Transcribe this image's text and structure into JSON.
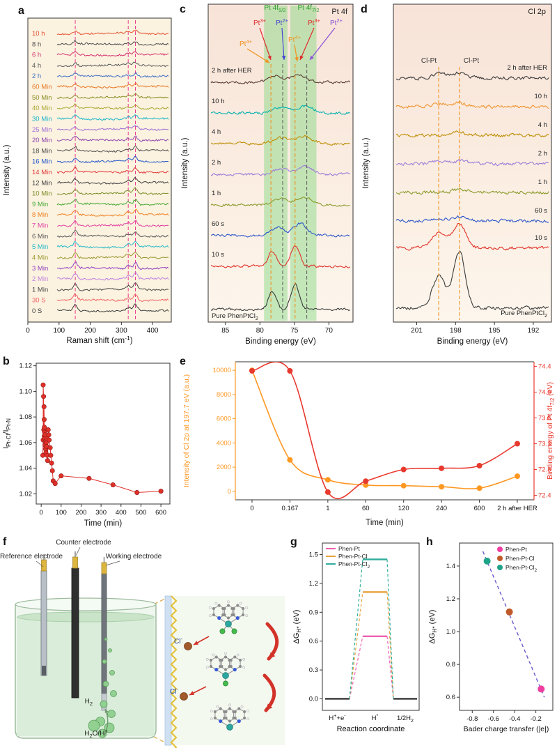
{
  "chart_data": {
    "a": {
      "letter": "a",
      "type": "line-stack",
      "xlabel": "Raman shift (cm^{-1})",
      "ylabel": "Intensity (a.u.)",
      "x_ticks": [
        0,
        100,
        200,
        300,
        400
      ],
      "x_range": [
        0,
        460
      ],
      "bg": "#fbf2e0",
      "dashed_color": "#e83e8c",
      "dashed_lines_x": [
        152,
        322,
        345
      ],
      "peaks": [
        {
          "x": 152,
          "w": 6,
          "h": 1.0
        },
        {
          "x": 322,
          "w": 7,
          "h": 0.55
        },
        {
          "x": 345,
          "w": 6,
          "h": 1.1
        }
      ],
      "traces": [
        {
          "label": "10 h",
          "color": "#e4502e",
          "amp": 4
        },
        {
          "label": "8 h",
          "color": "#4a4a4a",
          "amp": 4
        },
        {
          "label": "6 h",
          "color": "#d5326e",
          "amp": 4
        },
        {
          "label": "4 h",
          "color": "#5a5a5a",
          "amp": 4
        },
        {
          "label": "2 h",
          "color": "#3f6fc4",
          "amp": 4.5
        },
        {
          "label": "60 Min",
          "color": "#e87722",
          "amp": 4.5
        },
        {
          "label": "50 Min",
          "color": "#8a8b20",
          "amp": 4.5
        },
        {
          "label": "40 Min",
          "color": "#a8a832",
          "amp": 5
        },
        {
          "label": "30 Min",
          "color": "#17b5c8",
          "amp": 5
        },
        {
          "label": "25 Min",
          "color": "#a06fd6",
          "amp": 5
        },
        {
          "label": "20 Min",
          "color": "#8e44ad",
          "amp": 5.5
        },
        {
          "label": "18 Min",
          "color": "#4a4a4a",
          "amp": 5.5
        },
        {
          "label": "16 Min",
          "color": "#2456c8",
          "amp": 6
        },
        {
          "label": "14 Min",
          "color": "#e43434",
          "amp": 6
        },
        {
          "label": "12 Min",
          "color": "#3e3e3e",
          "amp": 6
        },
        {
          "label": "10 Min",
          "color": "#7a8c22",
          "amp": 6.5
        },
        {
          "label": "9 Min",
          "color": "#44a832",
          "amp": 6.5
        },
        {
          "label": "8 Min",
          "color": "#f08020",
          "amp": 7
        },
        {
          "label": "7 Min",
          "color": "#e040a0",
          "amp": 7
        },
        {
          "label": "6 Min",
          "color": "#565656",
          "amp": 7
        },
        {
          "label": "5 Min",
          "color": "#20b8c8",
          "amp": 7.5
        },
        {
          "label": "4 Min",
          "color": "#98972a",
          "amp": 7.5
        },
        {
          "label": "3 Min",
          "color": "#9040c0",
          "amp": 8
        },
        {
          "label": "2 Min",
          "color": "#c080e0",
          "amp": 8
        },
        {
          "label": "1 Min",
          "color": "#464646",
          "amp": 8.5
        },
        {
          "label": "30 S",
          "color": "#f06060",
          "amp": 8.5
        },
        {
          "label": "0 S",
          "color": "#3a3a3a",
          "amp": 9
        }
      ]
    },
    "b": {
      "letter": "b",
      "type": "scatter-line",
      "xlabel": "Time (min)",
      "ylabel": "I_{Pt-Cl}/I_{Pt-N}",
      "color": "#e0302a",
      "x_ticks": [
        0,
        100,
        200,
        300,
        400,
        500,
        600
      ],
      "y_ticks": [
        "1.02",
        "1.04",
        "1.06",
        "1.08",
        "1.10",
        "1.12"
      ],
      "x_range": [
        -25,
        645
      ],
      "y_range": [
        1.012,
        1.122
      ],
      "points": [
        [
          8,
          1.05
        ],
        [
          10,
          1.062
        ],
        [
          10,
          1.105
        ],
        [
          12,
          1.096
        ],
        [
          13,
          1.07
        ],
        [
          14,
          1.088
        ],
        [
          15,
          1.078
        ],
        [
          15,
          1.065
        ],
        [
          16,
          1.072
        ],
        [
          17,
          1.068
        ],
        [
          18,
          1.063
        ],
        [
          19,
          1.058
        ],
        [
          20,
          1.066
        ],
        [
          21,
          1.061
        ],
        [
          22,
          1.055
        ],
        [
          24,
          1.052
        ],
        [
          25,
          1.06
        ],
        [
          27,
          1.057
        ],
        [
          29,
          1.063
        ],
        [
          30,
          1.05
        ],
        [
          32,
          1.046
        ],
        [
          35,
          1.07
        ],
        [
          38,
          1.066
        ],
        [
          40,
          1.062
        ],
        [
          45,
          1.056
        ],
        [
          48,
          1.05
        ],
        [
          52,
          1.044
        ],
        [
          56,
          1.038
        ],
        [
          60,
          1.03
        ],
        [
          70,
          1.028
        ],
        [
          100,
          1.034
        ],
        [
          240,
          1.032
        ],
        [
          360,
          1.027
        ],
        [
          480,
          1.021
        ],
        [
          600,
          1.022
        ]
      ]
    },
    "c": {
      "letter": "c",
      "type": "xps-stack",
      "title": "Pt 4f",
      "xlabel": "Binding energy (eV)",
      "ylabel": "Intensity (a.u.)",
      "x_ticks": [
        85,
        80,
        75,
        70
      ],
      "x_range": [
        87.5,
        66.5
      ],
      "band_color": "#7ed87e",
      "bands": [
        {
          "from": 79.4,
          "to": 76.0
        },
        {
          "from": 75.6,
          "to": 71.8
        }
      ],
      "dashed": [
        {
          "x": 78.4,
          "color": "#f0921e"
        },
        {
          "x": 76.7,
          "color": "#666666"
        },
        {
          "x": 74.9,
          "color": "#f0921e"
        },
        {
          "x": 73.2,
          "color": "#666666"
        }
      ],
      "annotations": [
        {
          "t": "Pt 4f_{5/2}",
          "x": 140,
          "y": 14,
          "c": "#2e9e2e",
          "a": "middle"
        },
        {
          "t": "Pt 4f_{7/2}",
          "x": 188,
          "y": 14,
          "c": "#2e9e2e",
          "a": "middle"
        },
        {
          "t": "Pt^{3+}",
          "x": 118,
          "y": 36,
          "c": "#e02a2a",
          "a": "middle"
        },
        {
          "t": "Pt^{2+}",
          "x": 150,
          "y": 36,
          "c": "#4443d4",
          "a": "middle"
        },
        {
          "t": "Pt^{3+}",
          "x": 196,
          "y": 36,
          "c": "#e02a2a",
          "a": "middle"
        },
        {
          "t": "Pt^{2+}",
          "x": 228,
          "y": 36,
          "c": "#8a4fd8",
          "a": "middle"
        },
        {
          "t": "Pt^{4+}",
          "x": 98,
          "y": 66,
          "c": "#f0921e",
          "a": "middle"
        },
        {
          "t": "Pt^{4+}",
          "x": 168,
          "y": 60,
          "c": "#f0921e",
          "a": "middle"
        }
      ],
      "arrows": [
        [
          118,
          40,
          134,
          86,
          "#e02a2a"
        ],
        [
          150,
          40,
          153,
          86,
          "#4443d4"
        ],
        [
          100,
          70,
          132,
          90,
          "#f0921e"
        ],
        [
          168,
          64,
          172,
          88,
          "#f0921e"
        ],
        [
          196,
          40,
          176,
          86,
          "#e02a2a"
        ],
        [
          226,
          40,
          190,
          86,
          "#8a4fd8"
        ]
      ],
      "traces": [
        {
          "label": "2 h after HER",
          "color": "#5a3b32",
          "peaks": [
            {
              "x": 77.8,
              "a": 9,
              "w": 1.0
            },
            {
              "x": 74.4,
              "a": 11,
              "w": 1.0
            }
          ]
        },
        {
          "label": "10 h",
          "color": "#00b0ad",
          "peaks": [
            {
              "x": 76.9,
              "a": 8,
              "w": 1.05
            },
            {
              "x": 73.5,
              "a": 10,
              "w": 1.1
            }
          ]
        },
        {
          "label": "4 h",
          "color": "#bc8d00",
          "peaks": [
            {
              "x": 76.9,
              "a": 8,
              "w": 1.05
            },
            {
              "x": 73.5,
              "a": 10,
              "w": 1.1
            }
          ]
        },
        {
          "label": "2 h",
          "color": "#9e7bd8",
          "peaks": [
            {
              "x": 76.9,
              "a": 8,
              "w": 1.0
            },
            {
              "x": 73.5,
              "a": 11,
              "w": 1.05
            }
          ]
        },
        {
          "label": "1 h",
          "color": "#8a9a2a",
          "peaks": [
            {
              "x": 77.0,
              "a": 9,
              "w": 1.0
            },
            {
              "x": 73.6,
              "a": 12,
              "w": 1.05
            }
          ]
        },
        {
          "label": "60 s",
          "color": "#2d55c8",
          "peaks": [
            {
              "x": 77.4,
              "a": 13,
              "w": 0.9
            },
            {
              "x": 74.1,
              "a": 17,
              "w": 0.95
            }
          ]
        },
        {
          "label": "10 s",
          "color": "#e03028",
          "peaks": [
            {
              "x": 78.2,
              "a": 21,
              "w": 0.6
            },
            {
              "x": 74.9,
              "a": 29,
              "w": 0.65
            }
          ]
        },
        {
          "label": "Pure PhenPtCl_{2}",
          "color": "#3a3a3a",
          "peaks": [
            {
              "x": 78.2,
              "a": 26,
              "w": 0.55
            },
            {
              "x": 74.9,
              "a": 36,
              "w": 0.6
            }
          ]
        }
      ]
    },
    "d": {
      "letter": "d",
      "type": "xps-stack",
      "title": "Cl 2p",
      "xlabel": "Binding energy (eV)",
      "ylabel": "Intensity (a.u.)",
      "x_ticks": [
        201,
        198,
        195,
        192
      ],
      "x_range": [
        202.8,
        190.6
      ],
      "dashed": [
        {
          "x": 199.3,
          "color": "#f0921e"
        },
        {
          "x": 197.7,
          "color": "#f0921e"
        }
      ],
      "annotations": [
        {
          "t": "Cl-Pt",
          "x": 101,
          "y": 90,
          "c": "#333333",
          "a": "middle"
        },
        {
          "t": "Cl-Pt",
          "x": 162,
          "y": 90,
          "c": "#333333",
          "a": "middle"
        }
      ],
      "arrows": [],
      "traces": [
        {
          "label": "2 h after HER",
          "color": "#3a3a3a",
          "peaks": [
            {
              "x": 199.3,
              "a": 6,
              "w": 0.55
            },
            {
              "x": 197.7,
              "a": 7,
              "w": 0.55
            }
          ]
        },
        {
          "label": "10 h",
          "color": "#f09530",
          "peaks": [
            {
              "x": 199.3,
              "a": 4,
              "w": 0.55
            },
            {
              "x": 197.7,
              "a": 5,
              "w": 0.55
            }
          ]
        },
        {
          "label": "4 h",
          "color": "#bc8d00",
          "peaks": [
            {
              "x": 197.7,
              "a": 4,
              "w": 0.6
            }
          ]
        },
        {
          "label": "2 h",
          "color": "#9e7bd8",
          "peaks": [
            {
              "x": 199.3,
              "a": 3,
              "w": 0.5
            },
            {
              "x": 197.7,
              "a": 4,
              "w": 0.6
            }
          ]
        },
        {
          "label": "1 h",
          "color": "#8a9a2a",
          "peaks": [
            {
              "x": 197.7,
              "a": 4,
              "w": 0.6
            }
          ]
        },
        {
          "label": "60 s",
          "color": "#2d55c8",
          "peaks": [
            {
              "x": 199.3,
              "a": 4,
              "w": 0.5
            },
            {
              "x": 197.7,
              "a": 6,
              "w": 0.5
            }
          ]
        },
        {
          "label": "10 s",
          "color": "#e03028",
          "peaks": [
            {
              "x": 199.3,
              "a": 22,
              "w": 0.55
            },
            {
              "x": 197.7,
              "a": 34,
              "w": 0.5
            }
          ]
        },
        {
          "label": "Pure PhenPtCl_{2}",
          "color": "#3a3a3a",
          "peaks": [
            {
              "x": 199.3,
              "a": 46,
              "w": 0.5
            },
            {
              "x": 197.7,
              "a": 82,
              "w": 0.45
            }
          ]
        }
      ]
    },
    "e": {
      "letter": "e",
      "type": "dual-axis-line",
      "xlabel": "Time (min)",
      "ylabel_left": "Intensity of Cl 2p at 197.7 eV (a.u.)",
      "ylabel_right": "Binding energy of Pt 4f_{7/2} (eV)",
      "categories": [
        "0",
        "0.167",
        "1",
        "60",
        "120",
        "240",
        "600",
        "2 h after HER"
      ],
      "left": {
        "color": "#ff9721",
        "ticks": [
          0,
          2000,
          4000,
          6000,
          8000,
          10000
        ],
        "range": [
          -700,
          10700
        ],
        "values": [
          10000,
          2600,
          950,
          520,
          470,
          380,
          260,
          1250
        ]
      },
      "right": {
        "color": "#e8392e",
        "ticks": [
          "72.4",
          "72.8",
          "73.2",
          "73.6",
          "74.0",
          "74.4"
        ],
        "range": [
          72.33,
          74.47
        ],
        "values": [
          74.33,
          74.33,
          72.45,
          72.62,
          72.8,
          72.82,
          72.86,
          73.2
        ]
      }
    },
    "f": {
      "letter": "f",
      "type": "schematic",
      "labels": {
        "reference": "Reference electrode",
        "counter": "Counter electrode",
        "working": "Working electrode",
        "h2": "H_{2}",
        "h2o": "H_{2}O/H^{+}",
        "cl_top": "Cl^{-}",
        "cl_bottom": "Cl^{-}"
      }
    },
    "g": {
      "letter": "g",
      "type": "energy-diagram",
      "xlabel": "Reaction coordinate",
      "ylabel": "ΔG_{H*} (eV)",
      "y_ticks": [
        "0.0",
        "0.3",
        "0.6",
        "0.9",
        "1.2",
        "1.5"
      ],
      "y_range": [
        -0.12,
        1.62
      ],
      "x_labels": [
        "H^{+}+e^{-}",
        "H^{*}",
        "1/2H_{2}"
      ],
      "base_color": "#333333",
      "series": [
        {
          "label": "Phen-Pt",
          "color": "#ee5faf",
          "dG": 0.65
        },
        {
          "label": "Phen-Pt-Cl",
          "color": "#e8a23d",
          "dG": 1.11
        },
        {
          "label": "Phen-Pt-Cl_{2}",
          "color": "#2fae9b",
          "dG": 1.45
        }
      ]
    },
    "h": {
      "letter": "h",
      "type": "scatter",
      "xlabel": "Bader charge transfer (|e|)",
      "ylabel": "ΔG_{H*} (eV)",
      "x_ticks": [
        "-0.8",
        "-0.6",
        "-0.4",
        "-0.2"
      ],
      "x_range": [
        -0.92,
        -0.04
      ],
      "y_ticks": [
        "0.6",
        "0.8",
        "1.0",
        "1.2",
        "1.4"
      ],
      "y_range": [
        0.52,
        1.54
      ],
      "trend_color": "#6a5acd",
      "trend": [
        [
          -0.7,
          1.49
        ],
        [
          -0.12,
          0.6
        ]
      ],
      "points": [
        {
          "label": "Phen-Pt",
          "color": "#f03ea0",
          "x": -0.15,
          "y": 0.65
        },
        {
          "label": "Phen-Pt-Cl",
          "color": "#c05a28",
          "x": -0.45,
          "y": 1.12
        },
        {
          "label": "Phen-Pt-Cl_{2}",
          "color": "#1fa389",
          "x": -0.66,
          "y": 1.43
        }
      ]
    }
  }
}
